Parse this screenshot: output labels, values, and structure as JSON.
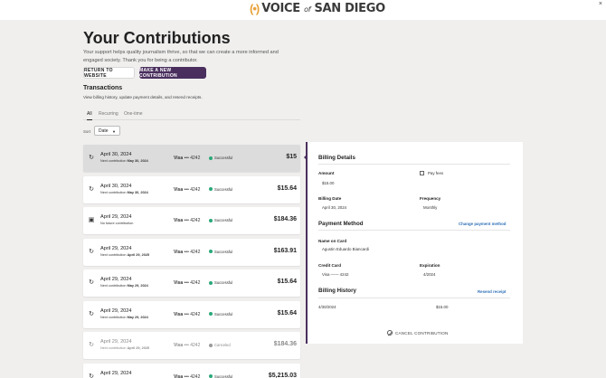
{
  "header": {
    "logo_mark": "(•)",
    "logo_word_1": "VOICE",
    "logo_word_2": "of",
    "logo_word_3": "SAN DIEGO",
    "close_glyph": "×"
  },
  "page": {
    "title": "Your Contributions",
    "intro": "Your support helps quality journalism thrive, so that we can create a more informed and engaged society. Thank you for being a contributor.",
    "return_button": "RETURN TO WEBSITE",
    "new_button": "MAKE A NEW CONTRIBUTION"
  },
  "transactions": {
    "title": "Transactions",
    "subtitle": "View billing history, update payment details, and resend receipts.",
    "tabs": [
      "All",
      "Recurring",
      "One-time"
    ],
    "sort_label": "Sort",
    "sort_value": "Date",
    "rows": [
      {
        "icon": "↻",
        "date": "April 30, 2024",
        "next_prefix": "Next contribution",
        "next_date": "May 30, 2024",
        "card_brand": "Visa",
        "card_mask": "••• 4242",
        "status": "Successful",
        "status_color": "#2aa879",
        "amount": "$15"
      },
      {
        "icon": "↻",
        "date": "April 30, 2024",
        "next_prefix": "Next contribution",
        "next_date": "May 30, 2024",
        "card_brand": "Visa",
        "card_mask": "••• 4242",
        "status": "Successful",
        "status_color": "#2aa879",
        "amount": "$15.64"
      },
      {
        "icon": "▣",
        "date": "April 29, 2024",
        "next_prefix": "No future contribution",
        "next_date": "",
        "card_brand": "Visa",
        "card_mask": "••• 4242",
        "status": "Successful",
        "status_color": "#2aa879",
        "amount": "$184.36"
      },
      {
        "icon": "↻",
        "date": "April 29, 2024",
        "next_prefix": "Next contribution",
        "next_date": "April 29, 2025",
        "card_brand": "Visa",
        "card_mask": "••• 4242",
        "status": "Successful",
        "status_color": "#2aa879",
        "amount": "$163.91"
      },
      {
        "icon": "↻",
        "date": "April 29, 2024",
        "next_prefix": "Next contribution",
        "next_date": "May 29, 2024",
        "card_brand": "Visa",
        "card_mask": "••• 4242",
        "status": "Successful",
        "status_color": "#2aa879",
        "amount": "$15.64"
      },
      {
        "icon": "↻",
        "date": "April 29, 2024",
        "next_prefix": "Next contribution",
        "next_date": "May 29, 2024",
        "card_brand": "Visa",
        "card_mask": "••• 4242",
        "status": "Successful",
        "status_color": "#2aa879",
        "amount": "$15.64"
      },
      {
        "icon": "↻",
        "date": "April 29, 2024",
        "next_prefix": "Next contribution",
        "next_date": "April 29, 2025",
        "card_brand": "Visa",
        "card_mask": "••• 4242",
        "status": "Canceled",
        "status_color": "#9a9a9a",
        "amount": "$184.36"
      },
      {
        "icon": "↻",
        "date": "April 29, 2024",
        "next_prefix": "",
        "next_date": "",
        "card_brand": "Visa",
        "card_mask": "••• 4242",
        "status": "Successful",
        "status_color": "#2aa879",
        "amount": "$5,215.03"
      }
    ]
  },
  "detail": {
    "billing_title": "Billing Details",
    "amount_label": "Amount",
    "amount_value": "$15.00",
    "pay_fees_label": "Pay fees",
    "billing_date_label": "Billing Date",
    "billing_date_value": "April 30, 2024",
    "frequency_label": "Frequency",
    "frequency_value": "Monthly",
    "payment_title": "Payment Method",
    "change_payment_link": "Change payment method",
    "name_label": "Name on Card",
    "name_value": "Agustin Eduardo Biancardi",
    "credit_label": "Credit Card",
    "credit_value": "Visa —— 4242",
    "expiration_label": "Expiration",
    "expiration_value": "4/2024",
    "history_title": "Billing History",
    "resend_link": "Resend receipt",
    "history_date": "4/30/2024",
    "history_amount": "$15.00",
    "cancel_label": "CANCEL CONTRIBUTION"
  },
  "colors": {
    "accent": "#4a2f5e",
    "link": "#2e6fb8",
    "success": "#2aa879",
    "logo_orange": "#e8a33a"
  }
}
